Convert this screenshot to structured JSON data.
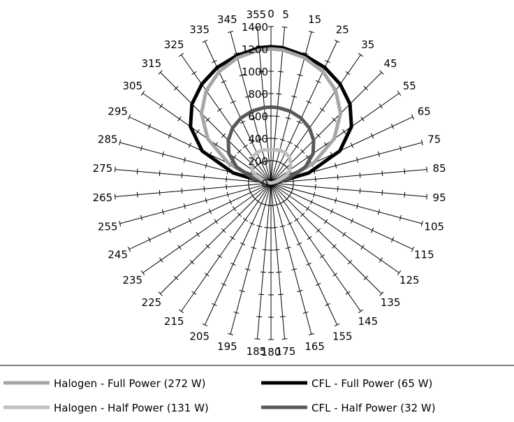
{
  "chart_data": {
    "type": "polar-line",
    "title": "",
    "angle_labels": [
      "0",
      "5",
      "15",
      "25",
      "35",
      "45",
      "55",
      "65",
      "75",
      "85",
      "95",
      "105",
      "115",
      "125",
      "135",
      "145",
      "155",
      "165",
      "175",
      "180",
      "185",
      "195",
      "205",
      "215",
      "225",
      "235",
      "245",
      "255",
      "265",
      "275",
      "285",
      "295",
      "305",
      "315",
      "325",
      "335",
      "345",
      "355"
    ],
    "radial_tick_labels": [
      "0",
      "200",
      "400",
      "600",
      "800",
      "1000",
      "1200",
      "1400"
    ],
    "rlim": [
      0,
      1400
    ],
    "angles_deg": [
      0,
      5,
      15,
      25,
      35,
      45,
      55,
      65,
      75,
      85,
      95,
      105,
      115,
      125,
      135,
      145,
      155,
      165,
      175,
      180,
      185,
      195,
      205,
      215,
      225,
      235,
      245,
      255,
      265,
      275,
      285,
      295,
      305,
      315,
      325,
      335,
      345,
      355
    ],
    "series": [
      {
        "name": "Halogen - Full Power (272 W)",
        "color": "#a6a6a6",
        "values": [
          1200,
          1195,
          1160,
          1100,
          1010,
          880,
          690,
          420,
          150,
          0,
          0,
          0,
          0,
          0,
          0,
          0,
          0,
          0,
          0,
          0,
          0,
          0,
          0,
          0,
          0,
          0,
          0,
          0,
          0,
          0,
          150,
          420,
          690,
          880,
          1010,
          1100,
          1160,
          1195
        ]
      },
      {
        "name": "CFL - Full Power (65 W)",
        "color": "#000000",
        "values": [
          1220,
          1215,
          1180,
          1140,
          1080,
          1000,
          880,
          680,
          350,
          50,
          0,
          0,
          0,
          0,
          0,
          0,
          0,
          0,
          0,
          0,
          0,
          0,
          0,
          0,
          0,
          0,
          0,
          0,
          0,
          50,
          350,
          680,
          880,
          1000,
          1080,
          1140,
          1180,
          1215
        ]
      },
      {
        "name": "Halogen - Half Power (131 W)",
        "color": "#bfbfbf",
        "values": [
          300,
          300,
          305,
          300,
          285,
          250,
          205,
          140,
          50,
          0,
          0,
          0,
          0,
          0,
          0,
          0,
          0,
          0,
          0,
          0,
          0,
          0,
          0,
          0,
          0,
          0,
          0,
          0,
          0,
          0,
          50,
          140,
          205,
          250,
          285,
          300,
          305,
          300
        ]
      },
      {
        "name": "CFL - Half Power (32 W)",
        "color": "#595959",
        "values": [
          680,
          678,
          665,
          640,
          600,
          540,
          460,
          340,
          160,
          20,
          0,
          0,
          0,
          0,
          0,
          0,
          0,
          0,
          0,
          0,
          0,
          0,
          0,
          0,
          0,
          0,
          0,
          0,
          0,
          20,
          160,
          340,
          460,
          540,
          600,
          640,
          665,
          678
        ]
      }
    ],
    "legend": {
      "position": "bottom",
      "entries": [
        {
          "label": "Halogen - Full Power (272 W)",
          "color": "#a6a6a6"
        },
        {
          "label": "CFL - Full Power (65 W)",
          "color": "#000000"
        },
        {
          "label": "Halogen - Half Power (131 W)",
          "color": "#bfbfbf"
        },
        {
          "label": "CFL - Half Power (32 W)",
          "color": "#595959"
        }
      ]
    }
  }
}
